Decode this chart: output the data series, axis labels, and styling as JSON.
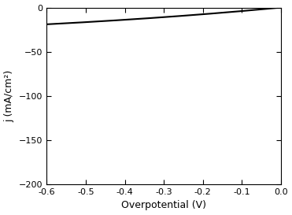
{
  "xlabel": "Overpotential (V)",
  "ylabel": "j (mA/cm²)",
  "xlim": [
    -0.6,
    0.0
  ],
  "ylim": [
    -200,
    0
  ],
  "xticks": [
    -0.6,
    -0.5,
    -0.4,
    -0.3,
    -0.2,
    -0.1,
    0.0
  ],
  "yticks": [
    -200,
    -150,
    -100,
    -50,
    0
  ],
  "line_color": "#000000",
  "line_width": 1.5,
  "background_color": "#ffffff",
  "scale": -0.65,
  "k": 15.0
}
